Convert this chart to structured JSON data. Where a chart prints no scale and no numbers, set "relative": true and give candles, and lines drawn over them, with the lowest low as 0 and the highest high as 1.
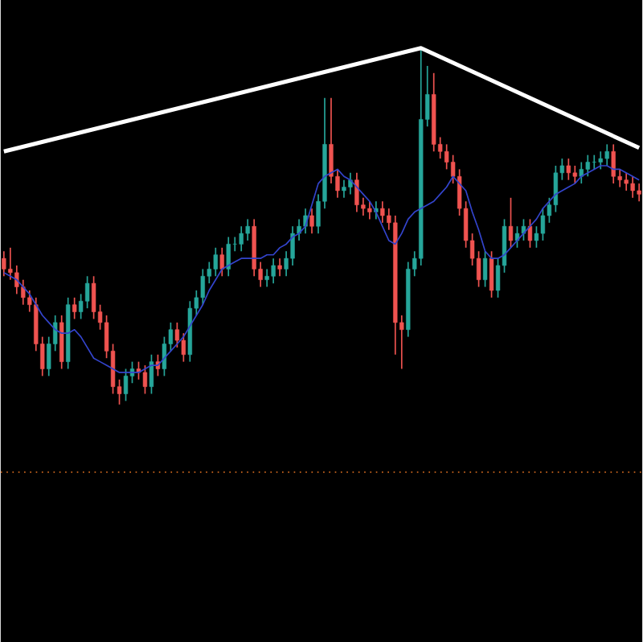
{
  "chart_data": {
    "type": "candlestick",
    "relative": true,
    "categories": [
      null,
      null,
      null,
      null,
      null,
      null,
      null,
      null,
      null,
      null,
      null,
      null,
      null,
      null,
      null,
      null,
      null,
      null,
      null,
      null,
      null,
      null,
      null,
      null,
      null,
      null,
      null,
      null,
      null,
      null,
      null,
      null,
      null,
      null,
      null,
      null,
      null,
      null,
      null,
      null,
      null,
      null,
      null,
      null,
      null,
      null,
      null,
      null,
      null,
      null,
      null,
      null,
      null,
      null,
      null,
      null,
      null,
      null,
      null,
      null,
      null,
      null,
      null,
      null,
      null,
      null,
      null,
      null,
      null,
      null,
      null,
      null,
      null,
      null,
      null,
      null,
      null,
      null,
      null,
      null,
      null,
      null,
      null,
      null,
      null,
      null,
      null,
      null,
      null,
      null,
      null,
      null,
      null,
      null,
      null,
      null,
      null,
      null,
      null,
      null
    ],
    "ohlc": [
      [
        0.41,
        0.43,
        0.36,
        0.38
      ],
      [
        0.38,
        0.44,
        0.35,
        0.37
      ],
      [
        0.37,
        0.39,
        0.31,
        0.33
      ],
      [
        0.33,
        0.35,
        0.28,
        0.3
      ],
      [
        0.3,
        0.32,
        0.26,
        0.28
      ],
      [
        0.28,
        0.3,
        0.15,
        0.17
      ],
      [
        0.17,
        0.19,
        0.08,
        0.1
      ],
      [
        0.1,
        0.19,
        0.08,
        0.17
      ],
      [
        0.17,
        0.25,
        0.15,
        0.23
      ],
      [
        0.23,
        0.25,
        0.1,
        0.12
      ],
      [
        0.12,
        0.3,
        0.1,
        0.28
      ],
      [
        0.28,
        0.3,
        0.24,
        0.26
      ],
      [
        0.26,
        0.31,
        0.24,
        0.29
      ],
      [
        0.29,
        0.36,
        0.27,
        0.34
      ],
      [
        0.34,
        0.36,
        0.24,
        0.26
      ],
      [
        0.26,
        0.28,
        0.21,
        0.23
      ],
      [
        0.23,
        0.25,
        0.13,
        0.15
      ],
      [
        0.15,
        0.17,
        0.03,
        0.05
      ],
      [
        0.05,
        0.07,
        0.0,
        0.03
      ],
      [
        0.03,
        0.1,
        0.01,
        0.08
      ],
      [
        0.08,
        0.12,
        0.06,
        0.1
      ],
      [
        0.1,
        0.12,
        0.07,
        0.09
      ],
      [
        0.09,
        0.11,
        0.03,
        0.05
      ],
      [
        0.05,
        0.14,
        0.03,
        0.12
      ],
      [
        0.12,
        0.14,
        0.08,
        0.1
      ],
      [
        0.1,
        0.19,
        0.08,
        0.17
      ],
      [
        0.17,
        0.23,
        0.15,
        0.21
      ],
      [
        0.21,
        0.23,
        0.16,
        0.18
      ],
      [
        0.18,
        0.2,
        0.12,
        0.14
      ],
      [
        0.14,
        0.29,
        0.12,
        0.27
      ],
      [
        0.27,
        0.32,
        0.25,
        0.3
      ],
      [
        0.3,
        0.38,
        0.28,
        0.36
      ],
      [
        0.36,
        0.4,
        0.34,
        0.38
      ],
      [
        0.38,
        0.44,
        0.36,
        0.42
      ],
      [
        0.42,
        0.44,
        0.36,
        0.38
      ],
      [
        0.38,
        0.47,
        0.36,
        0.45
      ],
      [
        0.45,
        0.47,
        0.43,
        0.45
      ],
      [
        0.45,
        0.5,
        0.43,
        0.48
      ],
      [
        0.48,
        0.52,
        0.46,
        0.5
      ],
      [
        0.5,
        0.52,
        0.36,
        0.38
      ],
      [
        0.38,
        0.4,
        0.33,
        0.35
      ],
      [
        0.35,
        0.38,
        0.33,
        0.36
      ],
      [
        0.36,
        0.41,
        0.34,
        0.39
      ],
      [
        0.39,
        0.41,
        0.36,
        0.38
      ],
      [
        0.38,
        0.43,
        0.36,
        0.41
      ],
      [
        0.41,
        0.5,
        0.39,
        0.48
      ],
      [
        0.48,
        0.52,
        0.46,
        0.5
      ],
      [
        0.5,
        0.55,
        0.48,
        0.53
      ],
      [
        0.53,
        0.55,
        0.48,
        0.5
      ],
      [
        0.5,
        0.59,
        0.48,
        0.57
      ],
      [
        0.57,
        0.86,
        0.55,
        0.73
      ],
      [
        0.73,
        0.86,
        0.62,
        0.64
      ],
      [
        0.64,
        0.66,
        0.58,
        0.6
      ],
      [
        0.6,
        0.63,
        0.58,
        0.61
      ],
      [
        0.61,
        0.65,
        0.59,
        0.63
      ],
      [
        0.63,
        0.65,
        0.54,
        0.56
      ],
      [
        0.56,
        0.58,
        0.53,
        0.55
      ],
      [
        0.55,
        0.57,
        0.52,
        0.54
      ],
      [
        0.54,
        0.57,
        0.52,
        0.55
      ],
      [
        0.55,
        0.57,
        0.51,
        0.53
      ],
      [
        0.53,
        0.55,
        0.49,
        0.51
      ],
      [
        0.51,
        0.53,
        0.14,
        0.23
      ],
      [
        0.23,
        0.25,
        0.1,
        0.21
      ],
      [
        0.21,
        0.4,
        0.19,
        0.38
      ],
      [
        0.38,
        0.43,
        0.36,
        0.41
      ],
      [
        0.41,
        1.0,
        0.39,
        0.8
      ],
      [
        0.8,
        0.95,
        0.78,
        0.87
      ],
      [
        0.87,
        0.93,
        0.71,
        0.73
      ],
      [
        0.73,
        0.75,
        0.69,
        0.71
      ],
      [
        0.71,
        0.73,
        0.66,
        0.68
      ],
      [
        0.68,
        0.7,
        0.62,
        0.64
      ],
      [
        0.64,
        0.66,
        0.53,
        0.55
      ],
      [
        0.55,
        0.57,
        0.44,
        0.46
      ],
      [
        0.46,
        0.48,
        0.39,
        0.41
      ],
      [
        0.41,
        0.43,
        0.33,
        0.35
      ],
      [
        0.35,
        0.43,
        0.33,
        0.41
      ],
      [
        0.41,
        0.43,
        0.3,
        0.32
      ],
      [
        0.32,
        0.41,
        0.3,
        0.39
      ],
      [
        0.39,
        0.52,
        0.37,
        0.5
      ],
      [
        0.5,
        0.58,
        0.44,
        0.46
      ],
      [
        0.46,
        0.5,
        0.44,
        0.48
      ],
      [
        0.48,
        0.52,
        0.46,
        0.5
      ],
      [
        0.5,
        0.52,
        0.44,
        0.46
      ],
      [
        0.46,
        0.5,
        0.44,
        0.48
      ],
      [
        0.48,
        0.55,
        0.46,
        0.53
      ],
      [
        0.53,
        0.58,
        0.51,
        0.56
      ],
      [
        0.56,
        0.67,
        0.54,
        0.65
      ],
      [
        0.65,
        0.69,
        0.63,
        0.67
      ],
      [
        0.67,
        0.69,
        0.63,
        0.65
      ],
      [
        0.65,
        0.67,
        0.62,
        0.64
      ],
      [
        0.64,
        0.68,
        0.62,
        0.66
      ],
      [
        0.66,
        0.7,
        0.64,
        0.68
      ],
      [
        0.68,
        0.7,
        0.66,
        0.68
      ],
      [
        0.68,
        0.71,
        0.66,
        0.69
      ],
      [
        0.69,
        0.73,
        0.67,
        0.71
      ],
      [
        0.71,
        0.73,
        0.62,
        0.64
      ],
      [
        0.64,
        0.66,
        0.61,
        0.63
      ],
      [
        0.63,
        0.65,
        0.6,
        0.62
      ],
      [
        0.62,
        0.64,
        0.58,
        0.6
      ],
      [
        0.6,
        0.62,
        0.57,
        0.59
      ]
    ],
    "series": [
      {
        "type": "line",
        "color": "#3344cc",
        "values": [
          0.37,
          0.36,
          0.35,
          0.33,
          0.31,
          0.28,
          0.25,
          0.23,
          0.21,
          0.2,
          0.2,
          0.21,
          0.19,
          0.16,
          0.13,
          0.12,
          0.11,
          0.1,
          0.09,
          0.09,
          0.09,
          0.09,
          0.1,
          0.11,
          0.11,
          0.13,
          0.15,
          0.17,
          0.19,
          0.22,
          0.25,
          0.28,
          0.32,
          0.35,
          0.38,
          0.39,
          0.4,
          0.41,
          0.41,
          0.41,
          0.41,
          0.42,
          0.42,
          0.44,
          0.45,
          0.47,
          0.48,
          0.5,
          0.56,
          0.62,
          0.64,
          0.65,
          0.66,
          0.64,
          0.63,
          0.61,
          0.59,
          0.57,
          0.54,
          0.5,
          0.46,
          0.45,
          0.48,
          0.52,
          0.54,
          0.55,
          0.56,
          0.57,
          0.59,
          0.61,
          0.64,
          0.62,
          0.6,
          0.54,
          0.49,
          0.43,
          0.41,
          0.41,
          0.42,
          0.44,
          0.46,
          0.48,
          0.5,
          0.52,
          0.55,
          0.57,
          0.59,
          0.6,
          0.61,
          0.62,
          0.64,
          0.65,
          0.66,
          0.67,
          0.67,
          0.66,
          0.66,
          0.65,
          0.64,
          0.63
        ]
      },
      {
        "type": "line",
        "color": "#ffffff",
        "values": [
          0.71,
          null,
          null,
          null,
          null,
          null,
          null,
          null,
          null,
          null,
          null,
          null,
          null,
          null,
          null,
          null,
          null,
          null,
          null,
          null,
          null,
          null,
          null,
          null,
          null,
          null,
          null,
          null,
          null,
          null,
          null,
          null,
          null,
          null,
          null,
          null,
          null,
          null,
          null,
          null,
          null,
          null,
          null,
          null,
          null,
          null,
          null,
          null,
          null,
          null,
          null,
          null,
          null,
          null,
          null,
          null,
          null,
          null,
          null,
          null,
          null,
          null,
          null,
          null,
          null,
          1.0,
          null,
          null,
          null,
          null,
          null,
          null,
          null,
          null,
          null,
          null,
          null,
          null,
          null,
          null,
          null,
          null,
          null,
          null,
          null,
          null,
          null,
          null,
          null,
          null,
          null,
          null,
          null,
          null,
          null,
          null,
          null,
          null,
          null,
          0.72
        ]
      }
    ],
    "ref_lines": [
      {
        "axis": "y",
        "value": -0.19,
        "color": "#c8641e",
        "line_style": "dotted"
      }
    ]
  }
}
